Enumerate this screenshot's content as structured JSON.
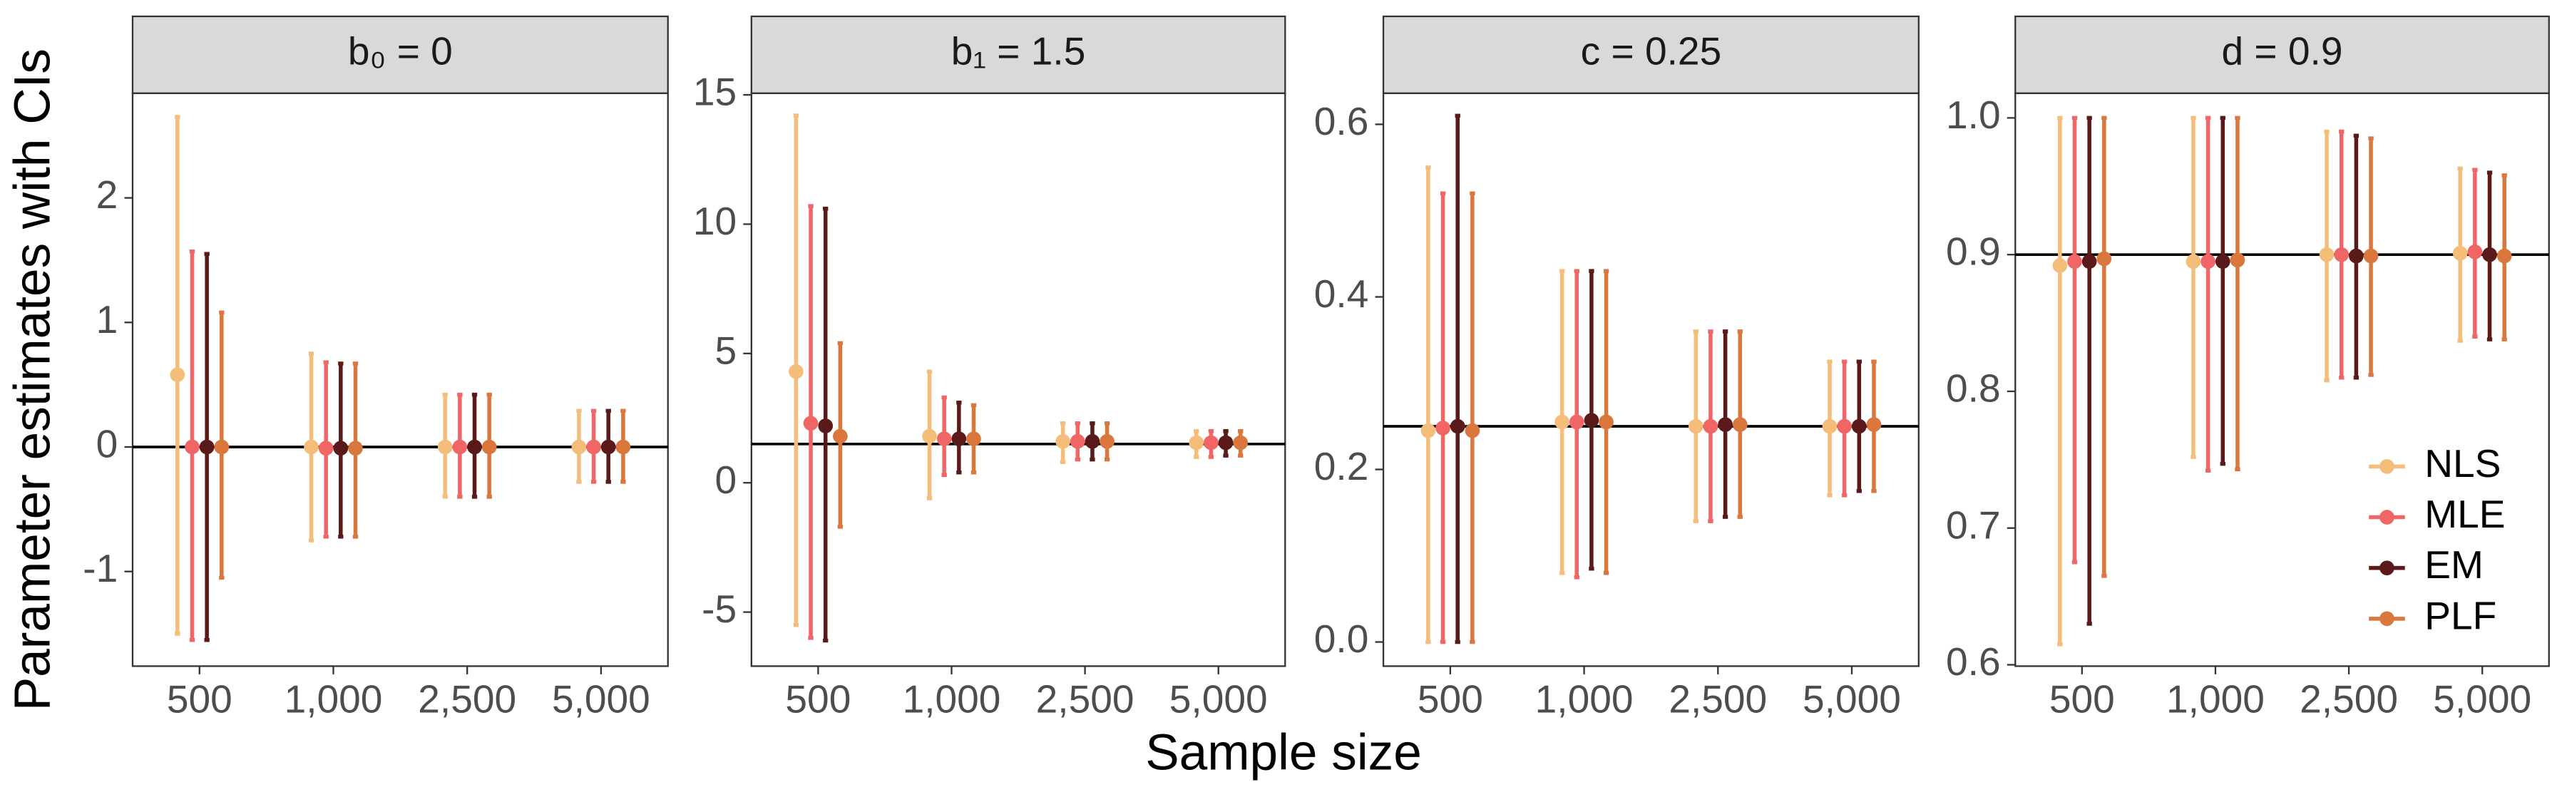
{
  "x_label": "Sample size",
  "y_label": "Parameter estimates with CIs",
  "chart_data": [
    {
      "type": "errorbar",
      "title": "b₀ = 0",
      "categories": [
        "500",
        "1,000",
        "2,500",
        "5,000"
      ],
      "series": [
        {
          "name": "NLS",
          "color": "#f5bd7a",
          "values": [
            0.58,
            0,
            0,
            0
          ],
          "lower": [
            -1.5,
            -0.75,
            -0.4,
            -0.28
          ],
          "upper": [
            2.65,
            0.75,
            0.42,
            0.29
          ]
        },
        {
          "name": "MLE",
          "color": "#f06666",
          "values": [
            0,
            -0.01,
            0,
            0
          ],
          "lower": [
            -1.55,
            -0.72,
            -0.4,
            -0.28
          ],
          "upper": [
            1.57,
            0.68,
            0.42,
            0.29
          ]
        },
        {
          "name": "EM",
          "color": "#5a1a1a",
          "values": [
            0,
            -0.01,
            0,
            0
          ],
          "lower": [
            -1.55,
            -0.72,
            -0.4,
            -0.28
          ],
          "upper": [
            1.55,
            0.67,
            0.42,
            0.29
          ]
        },
        {
          "name": "PLF",
          "color": "#d9773d",
          "values": [
            0,
            -0.01,
            0,
            0
          ],
          "lower": [
            -1.05,
            -0.72,
            -0.4,
            -0.28
          ],
          "upper": [
            1.08,
            0.67,
            0.42,
            0.29
          ]
        }
      ],
      "ylim": [
        -1.76,
        2.84
      ],
      "yticks": [
        -1,
        0,
        1,
        2
      ],
      "hline": 0
    },
    {
      "type": "errorbar",
      "title": "b₁ = 1.5",
      "categories": [
        "500",
        "1,000",
        "2,500",
        "5,000"
      ],
      "series": [
        {
          "name": "NLS",
          "color": "#f5bd7a",
          "values": [
            4.3,
            1.8,
            1.6,
            1.55
          ],
          "lower": [
            -5.5,
            -0.6,
            0.8,
            1.0
          ],
          "upper": [
            14.2,
            4.3,
            2.3,
            2.0
          ]
        },
        {
          "name": "MLE",
          "color": "#f06666",
          "values": [
            2.3,
            1.7,
            1.6,
            1.55
          ],
          "lower": [
            -6.0,
            0.3,
            0.9,
            1.0
          ],
          "upper": [
            10.7,
            3.3,
            2.3,
            2.0
          ]
        },
        {
          "name": "EM",
          "color": "#5a1a1a",
          "values": [
            2.2,
            1.7,
            1.6,
            1.55
          ],
          "lower": [
            -6.1,
            0.4,
            0.9,
            1.05
          ],
          "upper": [
            10.6,
            3.1,
            2.3,
            2.0
          ]
        },
        {
          "name": "PLF",
          "color": "#d9773d",
          "values": [
            1.8,
            1.7,
            1.6,
            1.55
          ],
          "lower": [
            -1.7,
            0.4,
            0.9,
            1.05
          ],
          "upper": [
            5.4,
            3.0,
            2.3,
            2.0
          ]
        }
      ],
      "ylim": [
        -7.09,
        15.06
      ],
      "yticks": [
        -5,
        0,
        5,
        10,
        15
      ],
      "hline": 1.5
    },
    {
      "type": "errorbar",
      "title": "c = 0.25",
      "categories": [
        "500",
        "1,000",
        "2,500",
        "5,000"
      ],
      "series": [
        {
          "name": "NLS",
          "color": "#f5bd7a",
          "values": [
            0.245,
            0.255,
            0.25,
            0.25
          ],
          "lower": [
            0,
            0.08,
            0.14,
            0.17
          ],
          "upper": [
            0.55,
            0.43,
            0.36,
            0.325
          ]
        },
        {
          "name": "MLE",
          "color": "#f06666",
          "values": [
            0.248,
            0.255,
            0.25,
            0.25
          ],
          "lower": [
            0,
            0.075,
            0.14,
            0.17
          ],
          "upper": [
            0.52,
            0.43,
            0.36,
            0.325
          ]
        },
        {
          "name": "EM",
          "color": "#5a1a1a",
          "values": [
            0.25,
            0.257,
            0.252,
            0.25
          ],
          "lower": [
            0,
            0.085,
            0.145,
            0.175
          ],
          "upper": [
            0.61,
            0.43,
            0.36,
            0.325
          ]
        },
        {
          "name": "PLF",
          "color": "#d9773d",
          "values": [
            0.245,
            0.255,
            0.252,
            0.252
          ],
          "lower": [
            0,
            0.08,
            0.145,
            0.175
          ],
          "upper": [
            0.52,
            0.43,
            0.36,
            0.325
          ]
        }
      ],
      "ylim": [
        -0.028,
        0.636
      ],
      "yticks": [
        {
          "value": 0,
          "label": "0.0"
        },
        0.2,
        0.4,
        0.6
      ],
      "hline": 0.25
    },
    {
      "type": "errorbar",
      "title": "d = 0.9",
      "categories": [
        "500",
        "1,000",
        "2,500",
        "5,000"
      ],
      "series": [
        {
          "name": "NLS",
          "color": "#f5bd7a",
          "values": [
            0.892,
            0.895,
            0.9,
            0.901
          ],
          "lower": [
            0.615,
            0.752,
            0.808,
            0.837
          ],
          "upper": [
            1.0,
            1.0,
            0.99,
            0.963
          ]
        },
        {
          "name": "MLE",
          "color": "#f06666",
          "values": [
            0.895,
            0.895,
            0.9,
            0.902
          ],
          "lower": [
            0.675,
            0.742,
            0.81,
            0.84
          ],
          "upper": [
            1.0,
            1.0,
            0.99,
            0.962
          ]
        },
        {
          "name": "EM",
          "color": "#5a1a1a",
          "values": [
            0.895,
            0.895,
            0.899,
            0.9
          ],
          "lower": [
            0.63,
            0.747,
            0.81,
            0.838
          ],
          "upper": [
            1.0,
            1.0,
            0.987,
            0.96
          ]
        },
        {
          "name": "PLF",
          "color": "#d9773d",
          "values": [
            0.897,
            0.896,
            0.899,
            0.899
          ],
          "lower": [
            0.665,
            0.743,
            0.812,
            0.838
          ],
          "upper": [
            1.0,
            1.0,
            0.985,
            0.958
          ]
        }
      ],
      "ylim": [
        0.599,
        1.018
      ],
      "yticks": [
        0.6,
        0.7,
        0.8,
        0.9,
        {
          "value": 1.0,
          "label": "1.0"
        }
      ],
      "hline": 0.9,
      "legend": "bottom-right"
    }
  ]
}
